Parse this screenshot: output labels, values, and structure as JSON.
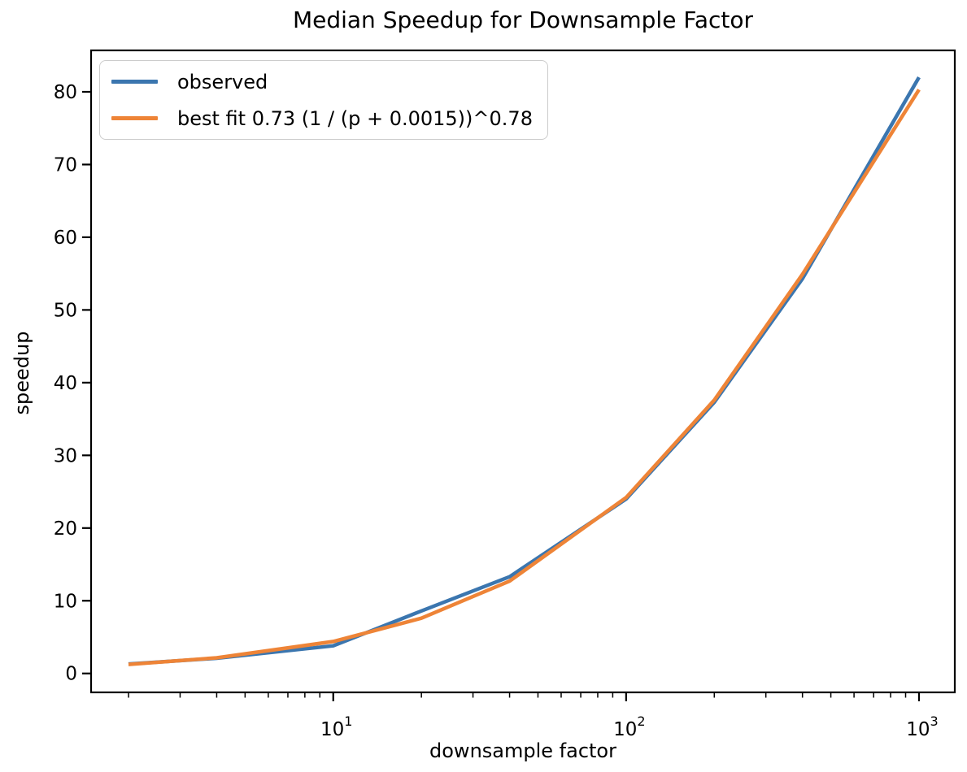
{
  "chart_data": {
    "type": "line",
    "title": "Median Speedup for Downsample Factor",
    "xlabel": "downsample factor",
    "ylabel": "speedup",
    "xscale": "log",
    "grid": false,
    "legend_position": "upper left",
    "x": [
      2,
      4,
      10,
      20,
      40,
      100,
      200,
      400,
      1000
    ],
    "series": [
      {
        "name": "observed",
        "color": "#3b76af",
        "values": [
          1.3,
          2.1,
          3.8,
          8.6,
          13.3,
          24.0,
          37.3,
          54.3,
          82.0
        ]
      },
      {
        "name": "best fit 0.73 (1 / (p + 0.0015))^0.78",
        "color": "#ee8437",
        "values": [
          1.25,
          2.15,
          4.4,
          7.6,
          12.7,
          24.2,
          37.6,
          54.9,
          80.3
        ]
      }
    ],
    "xlim": [
      1.49,
      1325
    ],
    "ylim": [
      -2.6,
      85.7
    ],
    "xticks": [
      10,
      100,
      1000
    ],
    "yticks": [
      0,
      10,
      20,
      30,
      40,
      50,
      60,
      70,
      80
    ]
  }
}
